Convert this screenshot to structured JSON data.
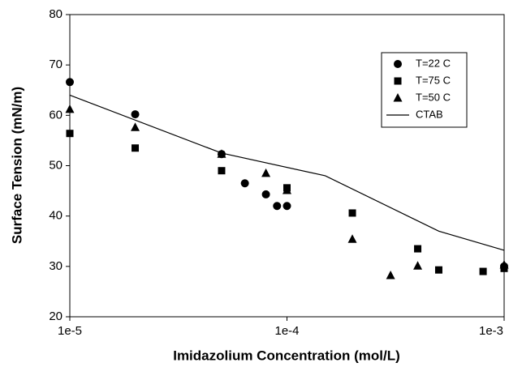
{
  "chart_data": {
    "type": "scatter",
    "xlabel": "Imidazolium Concentration (mol/L)",
    "ylabel": "Surface Tension (mN/m)",
    "xscale": "log",
    "xlim": [
      1e-05,
      0.001
    ],
    "xticks": [
      {
        "value": 1e-05,
        "label": "1e-5"
      },
      {
        "value": 0.0001,
        "label": "1e-4"
      },
      {
        "value": 0.001,
        "label": "1e-3"
      }
    ],
    "ylim": [
      20,
      80
    ],
    "yticks": [
      20,
      30,
      40,
      50,
      60,
      70,
      80
    ],
    "legend": "upper right",
    "series": [
      {
        "name": "T=22 C",
        "color": "#000000",
        "marker": "circle",
        "x": [
          1e-05,
          2e-05,
          5e-05,
          6.4e-05,
          8e-05,
          9e-05,
          0.0001,
          0.001
        ],
        "values": [
          66.6,
          60.2,
          52.3,
          46.5,
          44.3,
          42.0,
          42.0,
          30.0
        ]
      },
      {
        "name": "T=75 C",
        "color": "#000000",
        "marker": "square",
        "x": [
          1e-05,
          2e-05,
          5e-05,
          0.0001,
          0.0002,
          0.0004,
          0.0005,
          0.0008,
          0.001
        ],
        "values": [
          56.4,
          53.5,
          49.0,
          45.6,
          40.6,
          33.5,
          29.3,
          29.0,
          29.6
        ]
      },
      {
        "name": "T=50 C",
        "color": "#000000",
        "marker": "triangle",
        "x": [
          1e-05,
          2e-05,
          5e-05,
          8e-05,
          0.0001,
          0.0002,
          0.0003,
          0.0004,
          0.001
        ],
        "values": [
          61.2,
          57.6,
          52.3,
          48.5,
          45.1,
          35.4,
          28.2,
          30.1,
          30.3
        ]
      },
      {
        "name": "CTAB",
        "color": "#000000",
        "marker": "line",
        "x": [
          1e-05,
          5e-05,
          0.00015,
          0.0005,
          0.001
        ],
        "values": [
          64.0,
          52.5,
          48.0,
          37.0,
          33.2
        ]
      }
    ]
  }
}
